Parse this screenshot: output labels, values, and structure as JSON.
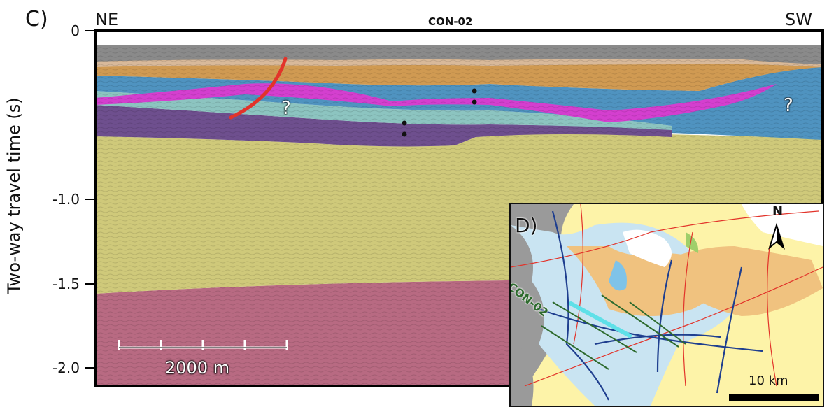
{
  "panel_label": "C)",
  "direction_left": "NE",
  "direction_right": "SW",
  "line_name": "CON-02",
  "y_axis_label": "Two-way travel time (s)",
  "y_ticks": [
    "0",
    "-1.0",
    "-1.5",
    "-2.0"
  ],
  "question_marks": [
    "?",
    "?"
  ],
  "scale_bar_label": "2000 m",
  "inset": {
    "label": "D)",
    "north_label": "N",
    "line_label": "CON-02",
    "scale_label": "10 km"
  },
  "colors": {
    "water": "#8a8a8a",
    "orange_unit": "#d09a52",
    "tan_unit": "#d8b99a",
    "blue_unit": "#4f93c0",
    "magenta_unit": "#d43fcf",
    "teal_unit": "#8cc4c0",
    "purple_unit": "#6e4f8e",
    "yellow_unit": "#cfc97a",
    "pink_unit": "#b86a82",
    "fault": "#e2332a",
    "profile_highlight": "#5fe0e8"
  }
}
